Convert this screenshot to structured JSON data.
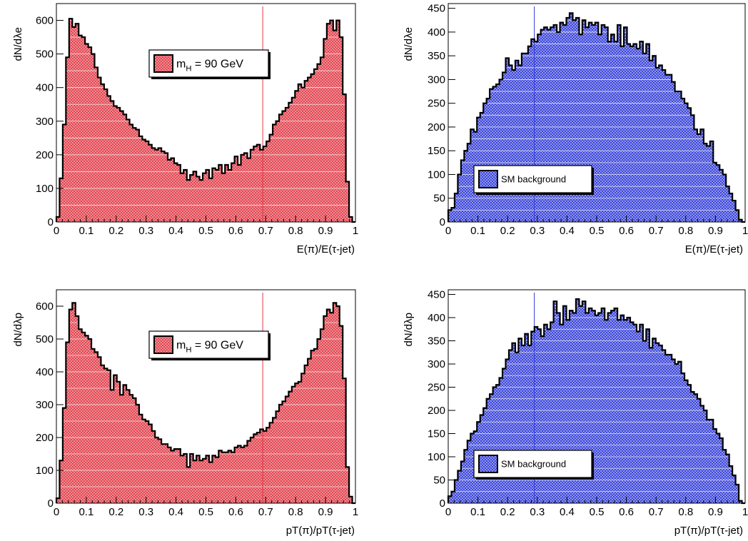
{
  "patterns": {
    "signal": {
      "fill": "#f2a0a6",
      "grid": "#e03a46",
      "outline": "#000000"
    },
    "background": {
      "fill": "#a6aef2",
      "grid": "#2d36d4",
      "outline": "#000000"
    }
  },
  "chart_data": [
    {
      "type": "bar",
      "series_kind": "signal",
      "title": "",
      "xlabel": "E(π)/E(τ-jet)",
      "ylabel": "dN/dλe",
      "xlim": [
        0,
        1
      ],
      "ylim": [
        0,
        650
      ],
      "xticks": [
        0,
        0.1,
        0.2,
        0.3,
        0.4,
        0.5,
        0.6,
        0.7,
        0.8,
        0.9,
        1
      ],
      "xtick_labels": [
        "0",
        "0.1",
        "0.2",
        "0.3",
        "0.4",
        "0.5",
        "0.6",
        "0.7",
        "0.8",
        "0.9",
        "1"
      ],
      "yticks": [
        0,
        100,
        200,
        300,
        400,
        500,
        600
      ],
      "ytick_labels": [
        "0",
        "100",
        "200",
        "300",
        "400",
        "500",
        "600"
      ],
      "grid": true,
      "legend": {
        "label": "m_H = 90 GeV",
        "main": "m",
        "sub": "H",
        "rest": " = 90 GeV",
        "placement": "top-center"
      },
      "marker_line_x": 0.69,
      "values": [
        15,
        130,
        290,
        490,
        605,
        580,
        590,
        555,
        550,
        530,
        520,
        500,
        460,
        430,
        410,
        395,
        375,
        360,
        345,
        340,
        330,
        320,
        305,
        290,
        280,
        275,
        255,
        245,
        240,
        230,
        220,
        215,
        220,
        210,
        205,
        185,
        190,
        175,
        170,
        145,
        155,
        125,
        140,
        150,
        135,
        125,
        145,
        155,
        130,
        160,
        155,
        170,
        145,
        170,
        155,
        175,
        195,
        170,
        200,
        205,
        190,
        215,
        225,
        230,
        215,
        225,
        240,
        260,
        290,
        300,
        320,
        330,
        340,
        355,
        370,
        390,
        410,
        400,
        420,
        430,
        440,
        455,
        470,
        490,
        545,
        590,
        600,
        570,
        600,
        550,
        380,
        120,
        15,
        0
      ]
    },
    {
      "type": "bar",
      "series_kind": "background",
      "title": "",
      "xlabel": "E(π)/E(τ-jet)",
      "ylabel": "dN/dλe",
      "xlim": [
        0,
        1
      ],
      "ylim": [
        0,
        460
      ],
      "xticks": [
        0,
        0.1,
        0.2,
        0.3,
        0.4,
        0.5,
        0.6,
        0.7,
        0.8,
        0.9,
        1
      ],
      "xtick_labels": [
        "0",
        "0.1",
        "0.2",
        "0.3",
        "0.4",
        "0.5",
        "0.6",
        "0.7",
        "0.8",
        "0.9",
        "1"
      ],
      "yticks": [
        0,
        50,
        100,
        150,
        200,
        250,
        300,
        350,
        400,
        450
      ],
      "ytick_labels": [
        "0",
        "50",
        "100",
        "150",
        "200",
        "250",
        "300",
        "350",
        "400",
        "450"
      ],
      "grid": true,
      "legend": {
        "label": "SM background",
        "main": "SM background",
        "sub": "",
        "rest": "",
        "placement": "bottom-left"
      },
      "marker_line_x": 0.29,
      "values": [
        25,
        30,
        60,
        100,
        130,
        150,
        165,
        195,
        190,
        220,
        230,
        250,
        260,
        280,
        285,
        290,
        300,
        315,
        345,
        330,
        320,
        340,
        330,
        355,
        355,
        370,
        385,
        380,
        395,
        405,
        410,
        405,
        410,
        415,
        400,
        420,
        415,
        430,
        440,
        425,
        430,
        395,
        425,
        410,
        420,
        415,
        420,
        395,
        415,
        410,
        380,
        395,
        380,
        415,
        370,
        410,
        375,
        370,
        375,
        365,
        380,
        355,
        375,
        340,
        350,
        325,
        330,
        320,
        310,
        310,
        295,
        275,
        275,
        260,
        250,
        240,
        225,
        195,
        185,
        195,
        165,
        160,
        170,
        125,
        120,
        110,
        100,
        75,
        60,
        45,
        25,
        5,
        0
      ]
    },
    {
      "type": "bar",
      "series_kind": "signal",
      "title": "",
      "xlabel": "pT(π)/pT(τ-jet)",
      "ylabel": "dN/dλp",
      "xlim": [
        0,
        1
      ],
      "ylim": [
        0,
        650
      ],
      "xticks": [
        0,
        0.1,
        0.2,
        0.3,
        0.4,
        0.5,
        0.6,
        0.7,
        0.8,
        0.9,
        1
      ],
      "xtick_labels": [
        "0",
        "0.1",
        "0.2",
        "0.3",
        "0.4",
        "0.5",
        "0.6",
        "0.7",
        "0.8",
        "0.9",
        "1"
      ],
      "yticks": [
        0,
        100,
        200,
        300,
        400,
        500,
        600
      ],
      "ytick_labels": [
        "0",
        "100",
        "200",
        "300",
        "400",
        "500",
        "600"
      ],
      "grid": true,
      "legend": {
        "label": "m_H = 90 GeV",
        "main": "m",
        "sub": "H",
        "rest": " = 90 GeV",
        "placement": "top-center"
      },
      "marker_line_x": 0.69,
      "values": [
        15,
        130,
        290,
        490,
        590,
        610,
        570,
        530,
        520,
        510,
        500,
        470,
        460,
        445,
        420,
        410,
        405,
        345,
        390,
        370,
        330,
        360,
        345,
        330,
        320,
        300,
        270,
        255,
        250,
        240,
        220,
        200,
        195,
        180,
        180,
        170,
        160,
        165,
        165,
        145,
        150,
        110,
        150,
        130,
        145,
        130,
        135,
        145,
        125,
        145,
        140,
        160,
        155,
        155,
        160,
        155,
        170,
        175,
        170,
        175,
        190,
        200,
        210,
        215,
        225,
        220,
        230,
        245,
        260,
        280,
        300,
        310,
        325,
        340,
        355,
        365,
        370,
        395,
        420,
        440,
        465,
        470,
        500,
        530,
        570,
        590,
        580,
        610,
        600,
        540,
        380,
        110,
        20,
        0
      ]
    },
    {
      "type": "bar",
      "series_kind": "background",
      "title": "",
      "xlabel": "pT(π)/pT(τ-jet)",
      "ylabel": "dN/dλp",
      "xlim": [
        0,
        1
      ],
      "ylim": [
        0,
        460
      ],
      "xticks": [
        0,
        0.1,
        0.2,
        0.3,
        0.4,
        0.5,
        0.6,
        0.7,
        0.8,
        0.9,
        1
      ],
      "xtick_labels": [
        "0",
        "0.1",
        "0.2",
        "0.3",
        "0.4",
        "0.5",
        "0.6",
        "0.7",
        "0.8",
        "0.9",
        "1"
      ],
      "yticks": [
        0,
        50,
        100,
        150,
        200,
        250,
        300,
        350,
        400,
        450
      ],
      "ytick_labels": [
        "0",
        "50",
        "100",
        "150",
        "200",
        "250",
        "300",
        "350",
        "400",
        "450"
      ],
      "grid": true,
      "legend": {
        "label": "SM background",
        "main": "SM background",
        "sub": "",
        "rest": "",
        "placement": "bottom-left"
      },
      "marker_line_x": 0.29,
      "values": [
        15,
        25,
        50,
        70,
        90,
        115,
        135,
        150,
        155,
        175,
        190,
        205,
        225,
        235,
        250,
        255,
        270,
        290,
        310,
        330,
        345,
        325,
        355,
        340,
        365,
        340,
        370,
        380,
        375,
        360,
        385,
        375,
        390,
        435,
        410,
        385,
        425,
        395,
        415,
        410,
        440,
        425,
        435,
        410,
        420,
        415,
        405,
        410,
        420,
        395,
        410,
        415,
        420,
        395,
        405,
        395,
        400,
        390,
        385,
        370,
        385,
        350,
        375,
        335,
        355,
        345,
        340,
        330,
        320,
        320,
        310,
        300,
        305,
        280,
        265,
        255,
        240,
        235,
        225,
        210,
        200,
        180,
        180,
        160,
        150,
        140,
        115,
        105,
        80,
        60,
        40,
        5,
        0
      ]
    }
  ]
}
